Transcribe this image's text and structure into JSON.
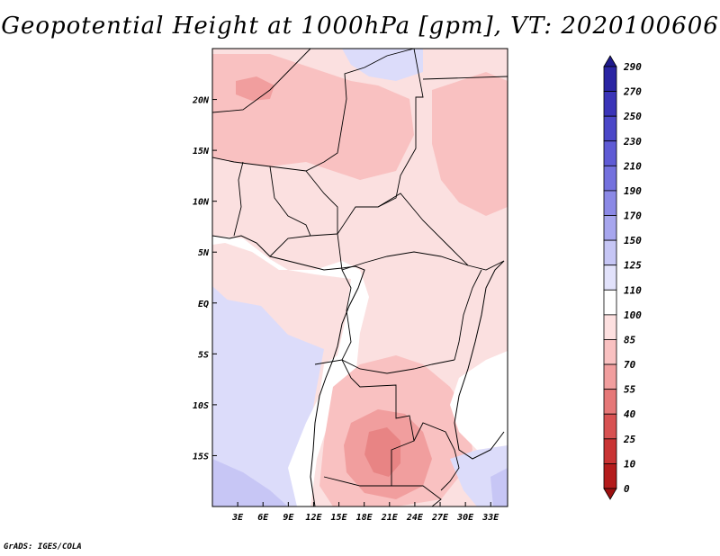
{
  "title": "Geopotential Height at 1000hPa [gpm], VT: 2020100606",
  "footer": "GrADS: IGES/COLA",
  "map": {
    "variable": "Geopotential Height",
    "level": "1000hPa",
    "units": "gpm",
    "valid_time": "2020100606",
    "region": "Central and Southern Africa",
    "lon_range": [
      0,
      35
    ],
    "lat_range": [
      -20,
      25
    ],
    "lat_labels": [
      "20N",
      "15N",
      "10N",
      "5N",
      "EQ",
      "5S",
      "10S",
      "15S"
    ],
    "lat_values": [
      20,
      15,
      10,
      5,
      0,
      -5,
      -10,
      -15
    ],
    "lon_labels": [
      "3E",
      "6E",
      "9E",
      "12E",
      "15E",
      "18E",
      "21E",
      "24E",
      "27E",
      "30E",
      "33E"
    ],
    "lon_values": [
      3,
      6,
      9,
      12,
      15,
      18,
      21,
      24,
      27,
      30,
      33
    ]
  },
  "colorbar": {
    "labels": [
      "290",
      "270",
      "250",
      "230",
      "210",
      "190",
      "170",
      "150",
      "125",
      "110",
      "100",
      "85",
      "70",
      "55",
      "40",
      "25",
      "10",
      "0"
    ],
    "colors": [
      "#1e1a8c",
      "#2a25a3",
      "#3a34b8",
      "#4b47c8",
      "#5f5bd5",
      "#7471de",
      "#8b89e6",
      "#a7a6ee",
      "#c6c6f5",
      "#e2e2fb",
      "#ffffff",
      "#fde0e0",
      "#f9c1c1",
      "#f19e9e",
      "#e67878",
      "#d85252",
      "#c93434",
      "#b41c1c",
      "#9c1010"
    ]
  }
}
